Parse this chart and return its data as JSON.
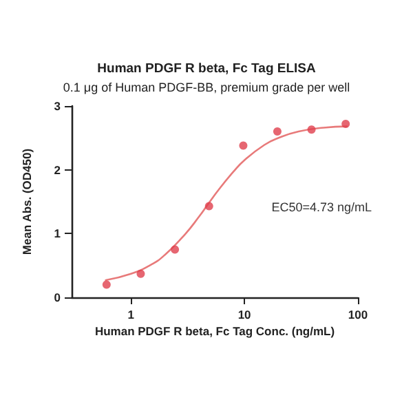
{
  "chart_data": {
    "type": "scatter",
    "title": "Human PDGF R beta, Fc Tag ELISA",
    "subtitle": "0.1 μg of Human PDGF-BB, premium grade per well",
    "xlabel": "Human PDGF R beta, Fc Tag Conc. (ng/mL)",
    "ylabel": "Mean Abs. (OD450)",
    "annotations": [
      "EC50=4.73 ng/mL"
    ],
    "log": "x",
    "xlim": [
      0.3,
      100
    ],
    "xticks": [
      1,
      10,
      100
    ],
    "ylim": [
      0,
      3
    ],
    "yticks": [
      0,
      1,
      2,
      3
    ],
    "grid": false,
    "marker": "circle",
    "series": [
      {
        "color": "#e0404e",
        "x": [
          0.61,
          1.22,
          2.44,
          4.88,
          9.77,
          19.5,
          39,
          78
        ],
        "values": [
          0.2,
          0.37,
          0.75,
          1.43,
          2.38,
          2.6,
          2.63,
          2.72
        ]
      },
      {
        "type": "line",
        "marker": "none",
        "color": "#e87a7a",
        "x": [
          0.6,
          1,
          1.5,
          2,
          3,
          4,
          4.73,
          6,
          8,
          10,
          15,
          20,
          30,
          50,
          80
        ],
        "values": [
          0.27,
          0.37,
          0.51,
          0.67,
          0.99,
          1.27,
          1.45,
          1.7,
          1.97,
          2.15,
          2.39,
          2.5,
          2.6,
          2.66,
          2.68
        ]
      }
    ]
  }
}
